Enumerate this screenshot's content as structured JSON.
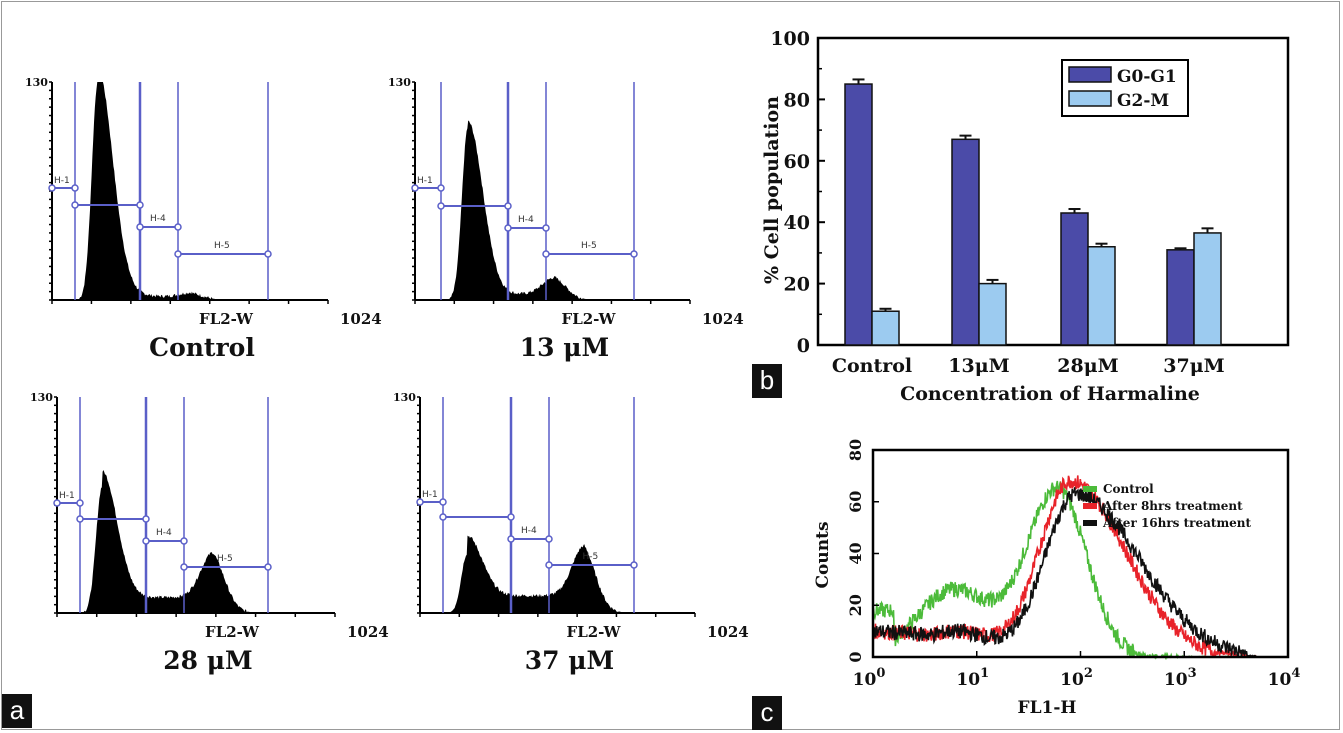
{
  "panel_letters": {
    "a": "a",
    "b": "b",
    "c": "c"
  },
  "chart_data": [
    {
      "type": "area",
      "panel": "a",
      "kind": "DNA content histograms",
      "y_top_label": "130",
      "x_label": "FL2-W",
      "x_max_label": "1024",
      "ylim": [
        0,
        130
      ],
      "xlim": [
        0,
        1024
      ],
      "colors": {
        "histogram": "#000000",
        "markers": "#5a5fc8"
      },
      "marker_labels": [
        "H-1",
        "H-4",
        "H-5"
      ],
      "histograms": [
        {
          "title": "Control",
          "g1_peak_channel": 170,
          "g1_peak_count": 130,
          "g2_peak_channel": 520,
          "g2_peak_count": 3
        },
        {
          "title": "13 μM",
          "g1_peak_channel": 197,
          "g1_peak_count": 103,
          "g2_peak_channel": 521,
          "g2_peak_count": 10
        },
        {
          "title": "28 μM",
          "g1_peak_channel": 166,
          "g1_peak_count": 76,
          "g2_peak_channel": 575,
          "g2_peak_count": 27
        },
        {
          "title": "37 μM",
          "g1_peak_channel": 176,
          "g1_peak_count": 36,
          "g2_peak_channel": 612,
          "g2_peak_count": 30
        }
      ]
    },
    {
      "type": "bar",
      "panel": "b",
      "categories": [
        "Control",
        "13μM",
        "28μM",
        "37μM"
      ],
      "series": [
        {
          "name": "G0-G1",
          "values": [
            85,
            67,
            43,
            31
          ],
          "errors": [
            1.5,
            1.2,
            1.3,
            0.5
          ],
          "color": "#4b4ba8"
        },
        {
          "name": "G2-M",
          "values": [
            11,
            20,
            32,
            36.5
          ],
          "errors": [
            0.8,
            1.2,
            1.0,
            1.5
          ],
          "color": "#9ccbf0"
        }
      ],
      "xlabel": "Concentration of Harmaline",
      "ylabel": "% Cell population",
      "ylim": [
        0,
        100
      ],
      "yticks": [
        "0",
        "20",
        "40",
        "60",
        "80",
        "100"
      ],
      "legend": "top-right"
    },
    {
      "type": "line",
      "panel": "c",
      "xlabel": "FL1-H",
      "ylabel": "Counts",
      "x_scale": "log",
      "xlim": [
        1,
        10000
      ],
      "ylim": [
        0,
        80
      ],
      "xticks": [
        {
          "base": "10",
          "exp": "0"
        },
        {
          "base": "10",
          "exp": "1"
        },
        {
          "base": "10",
          "exp": "2"
        },
        {
          "base": "10",
          "exp": "3"
        },
        {
          "base": "10",
          "exp": "4"
        }
      ],
      "yticks": [
        "0",
        "20",
        "40",
        "60",
        "80"
      ],
      "legend": "top-right",
      "series": [
        {
          "name": "Control",
          "color": "#4cbb3a",
          "peak_x": 60,
          "peak_y": 65,
          "shoulder_x": 6,
          "shoulder_y": 26
        },
        {
          "name": "After 8hrs treatment",
          "color": "#e8232a",
          "peak_x": 80,
          "peak_y": 68,
          "shoulder_x": 6,
          "shoulder_y": 10
        },
        {
          "name": "After 16hrs treatment",
          "color": "#111111",
          "peak_x": 90,
          "peak_y": 63,
          "shoulder_x": 6,
          "shoulder_y": 10
        }
      ]
    }
  ]
}
